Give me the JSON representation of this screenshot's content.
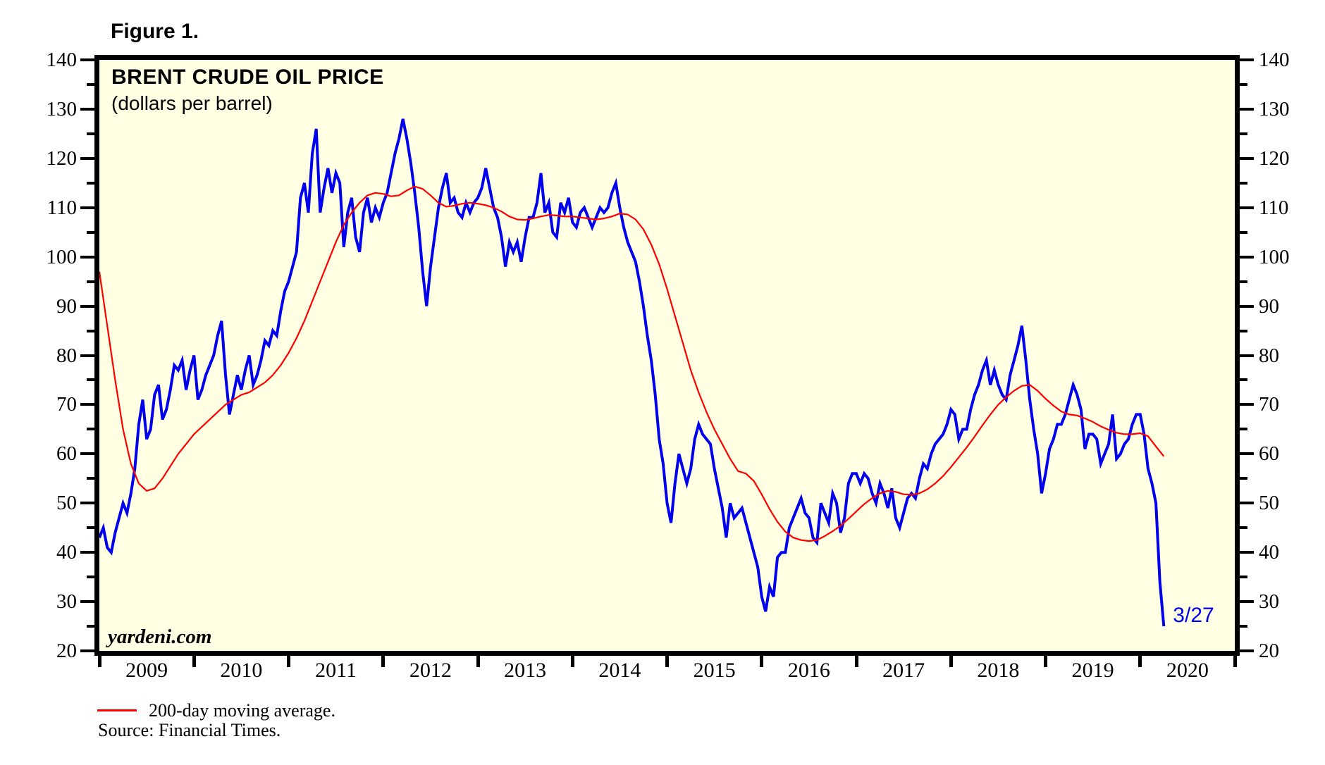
{
  "figure": {
    "label": "Figure 1."
  },
  "legend": {
    "items": [
      {
        "label": "200-day moving average.",
        "color": "#FF0000"
      }
    ]
  },
  "source": {
    "text": "Source: Financial Times."
  },
  "colors": {
    "background": "#FFFFE3",
    "axis": "#000000",
    "price_line": "#0000EE",
    "ma_line": "#FF0000",
    "end_label": "#0000EE"
  },
  "chart_data": {
    "type": "line",
    "title": "BRENT CRUDE OIL PRICE",
    "subtitle": "(dollars per barrel)",
    "watermark": "yardeni.com",
    "end_label": "3/27",
    "grid": false,
    "axis_labels_both_sides": true,
    "xlim": [
      2009,
      2021
    ],
    "ylim": [
      20,
      140
    ],
    "y_tick_major": 10,
    "y_tick_minor": 5,
    "y_tick_labels": [
      20,
      30,
      40,
      50,
      60,
      70,
      80,
      90,
      100,
      110,
      120,
      130,
      140
    ],
    "x_year_labels": [
      "2009",
      "2010",
      "2011",
      "2012",
      "2013",
      "2014",
      "2015",
      "2016",
      "2017",
      "2018",
      "2019",
      "2020"
    ],
    "series": [
      {
        "name": "Brent crude oil price (daily, dollars per barrel)",
        "color": "#0000EE",
        "width": 4,
        "start": 2009.0,
        "step": 0.0416667,
        "values": [
          43,
          45,
          41,
          40,
          44,
          47,
          50,
          48,
          52,
          57,
          66,
          71,
          63,
          65,
          72,
          74,
          67,
          69,
          73,
          78,
          77,
          79,
          73,
          77,
          80,
          71,
          73,
          76,
          78,
          80,
          84,
          87,
          76,
          68,
          72,
          76,
          73,
          77,
          80,
          74,
          76,
          79,
          83,
          82,
          85,
          84,
          89,
          93,
          95,
          98,
          101,
          112,
          115,
          109,
          121,
          126,
          109,
          114,
          118,
          113,
          117,
          115,
          102,
          109,
          112,
          104,
          101,
          109,
          112,
          107,
          110,
          108,
          111,
          113,
          117,
          121,
          124,
          128,
          124,
          119,
          113,
          106,
          97,
          90,
          98,
          104,
          110,
          114,
          117,
          111,
          112,
          109,
          108,
          111,
          109,
          111,
          112,
          114,
          118,
          114,
          110,
          108,
          104,
          98,
          103,
          101,
          103,
          99,
          104,
          108,
          108,
          111,
          117,
          109,
          111,
          105,
          104,
          111,
          109,
          112,
          107,
          106,
          109,
          110,
          108,
          106,
          108,
          110,
          109,
          110,
          113,
          115,
          110,
          106,
          103,
          101,
          99,
          95,
          90,
          84,
          79,
          72,
          63,
          58,
          50,
          46,
          54,
          60,
          57,
          54,
          57,
          63,
          66,
          64,
          63,
          62,
          57,
          53,
          49,
          43,
          50,
          47,
          48,
          49,
          46,
          43,
          40,
          37,
          31,
          28,
          33,
          31,
          39,
          40,
          40,
          45,
          47,
          49,
          51,
          48,
          47,
          43,
          42,
          50,
          48,
          46,
          52,
          50,
          44,
          47,
          54,
          56,
          56,
          54,
          56,
          55,
          52,
          50,
          54,
          52,
          49,
          53,
          47,
          45,
          48,
          51,
          52,
          51,
          55,
          58,
          57,
          60,
          62,
          63,
          64,
          66,
          69,
          68,
          63,
          65,
          65,
          69,
          72,
          74,
          77,
          79,
          74,
          77,
          74,
          72,
          71,
          76,
          79,
          82,
          86,
          79,
          71,
          65,
          60,
          52,
          56,
          61,
          63,
          66,
          66,
          68,
          71,
          74,
          72,
          69,
          61,
          64,
          64,
          63,
          58,
          60,
          62,
          68,
          59,
          60,
          62,
          63,
          66,
          68,
          68,
          64,
          57,
          54,
          50,
          34,
          25
        ]
      },
      {
        "name": "200-day moving average",
        "color": "#FF0000",
        "width": 2.2,
        "start": 2009.0,
        "step": 0.0833333,
        "values": [
          97,
          86,
          75,
          65,
          58,
          54,
          52.5,
          53,
          55,
          57.5,
          60,
          62,
          64,
          65.5,
          67,
          68.5,
          70,
          71,
          72,
          72.5,
          73.5,
          74.5,
          76,
          78,
          80.5,
          83.5,
          87,
          91,
          95,
          99,
          103,
          106.5,
          109,
          111,
          112.5,
          113,
          112.8,
          112.3,
          112.5,
          113.5,
          114.3,
          113.8,
          112.5,
          111,
          110.2,
          110.4,
          110.8,
          111,
          110.8,
          110.5,
          110,
          109.2,
          108.2,
          107.6,
          107.5,
          107.8,
          108.2,
          108.5,
          108.4,
          108.2,
          108.2,
          108,
          107.8,
          107.6,
          107.8,
          108.2,
          108.8,
          108.6,
          107.6,
          105.6,
          102.5,
          98.5,
          93.5,
          88,
          82.5,
          77,
          72.5,
          68.5,
          65,
          62,
          59,
          56.5,
          56,
          54.5,
          51.8,
          48.8,
          46.2,
          44.2,
          43,
          42.5,
          42.3,
          42.5,
          43.3,
          44.3,
          45.4,
          46.8,
          48.3,
          49.8,
          51,
          52,
          52.5,
          52.3,
          51.8,
          51.7,
          52,
          52.8,
          54,
          55.5,
          57.3,
          59.3,
          61.3,
          63.5,
          65.8,
          68,
          70,
          71.5,
          72.8,
          73.8,
          74,
          72.8,
          71.2,
          69.8,
          68.6,
          68,
          67.8,
          67.2,
          66.5,
          65.6,
          64.9,
          64.3,
          64,
          64,
          64.2,
          63.6,
          61.5,
          59.5
        ]
      }
    ]
  }
}
